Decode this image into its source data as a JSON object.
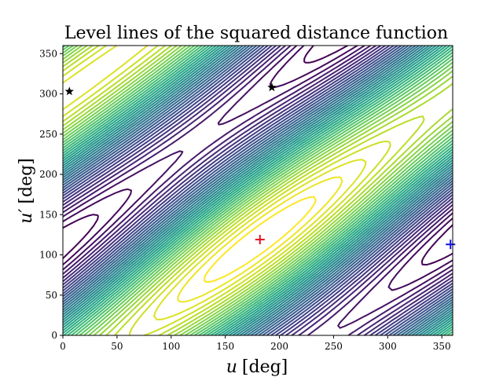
{
  "chart_data": {
    "type": "contour",
    "title": "Level lines of the squared distance function",
    "xlabel_main": "u",
    "xlabel_unit": "[deg]",
    "ylabel_main": "u′",
    "ylabel_unit": "[deg]",
    "xlim": [
      0,
      360
    ],
    "ylim": [
      0,
      360
    ],
    "xticks": [
      0,
      50,
      100,
      150,
      200,
      250,
      300,
      350
    ],
    "yticks": [
      0,
      50,
      100,
      150,
      200,
      250,
      300,
      350
    ],
    "grid": false,
    "colormap": "viridis",
    "level_count": 40,
    "minimum_marker": {
      "x": 182,
      "y": 119,
      "marker": "plus",
      "color": "#e8101f"
    },
    "boundary_marker": {
      "x": 358,
      "y": 113,
      "marker": "plus",
      "color": "#1010e8"
    },
    "star_markers": [
      {
        "x": 6,
        "y": 303,
        "marker": "star",
        "color": "#000000"
      },
      {
        "x": 193,
        "y": 308,
        "marker": "star",
        "color": "#000000"
      }
    ]
  }
}
